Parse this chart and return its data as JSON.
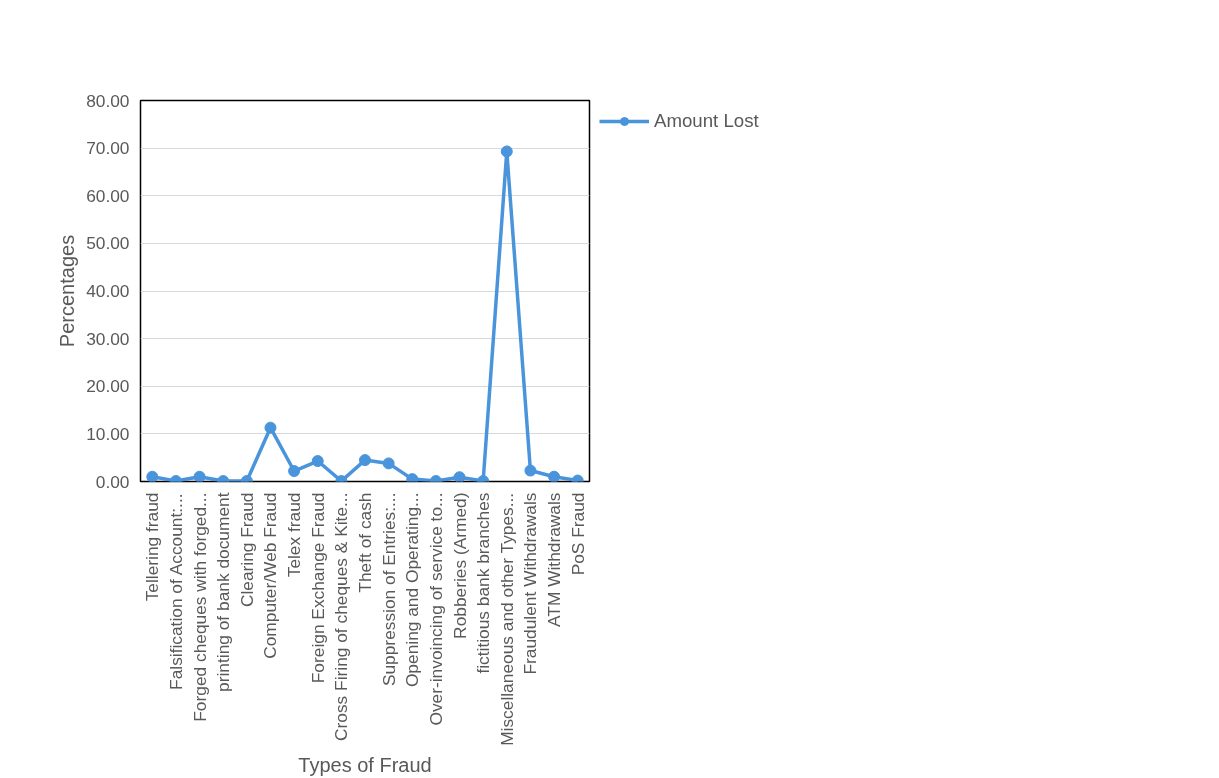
{
  "chart_data": {
    "type": "line",
    "xlabel": "Types of Fraud",
    "ylabel": "Percentages",
    "categories": [
      "Tellering fraud",
      "Falsification of Account:...",
      "Forged cheques with forged...",
      "printing of bank document",
      "Clearing Fraud",
      "Computer/Web Fraud",
      "Telex fraud",
      "Foreign Exchange Fraud",
      "Cross Firing of cheques & Kite...",
      "Theft of cash",
      "Suppression of Entries:...",
      "Opening and Operating...",
      "Over-invoincing of service to...",
      "Robberies (Armed)",
      "fictitious bank branches",
      "Miscellaneous and other Types...",
      "Fraudulent Withdrawals",
      "ATM Withdrawals",
      "PoS Fraud"
    ],
    "series": [
      {
        "name": "Amount Lost",
        "color": "#4a94dc",
        "values": [
          1.0,
          0.1,
          1.0,
          0.1,
          0.1,
          11.3,
          2.2,
          4.3,
          0.1,
          4.5,
          3.8,
          0.5,
          0.1,
          0.9,
          0.1,
          69.3,
          2.3,
          1.0,
          0.2
        ]
      }
    ],
    "ylim": [
      0,
      80
    ],
    "yticks": [
      {
        "value": 0,
        "label": "0.00"
      },
      {
        "value": 10,
        "label": "10.00"
      },
      {
        "value": 20,
        "label": "20.00"
      },
      {
        "value": 30,
        "label": "30.00"
      },
      {
        "value": 40,
        "label": "40.00"
      },
      {
        "value": 50,
        "label": "50.00"
      },
      {
        "value": 60,
        "label": "60.00"
      },
      {
        "value": 70,
        "label": "70.00"
      },
      {
        "value": 80,
        "label": "80.00"
      }
    ],
    "grid": "y",
    "legend": "top right",
    "marker": "circle",
    "line_style": "solid"
  }
}
